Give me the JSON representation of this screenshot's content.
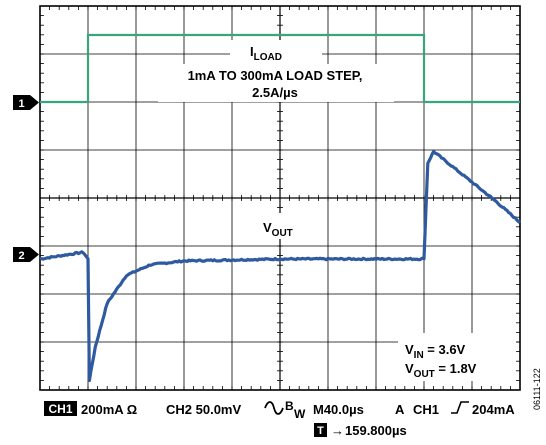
{
  "chart_data": {
    "type": "line",
    "title": "",
    "xlabel": "",
    "ylabel": "",
    "x_divisions": 10,
    "y_divisions": 8,
    "series": [
      {
        "name": "ILOAD",
        "channel": "CH1",
        "color": "#3aa57a",
        "unit": "mA",
        "x": [
          0,
          1.0,
          1.0,
          8.0,
          8.0,
          10
        ],
        "values": [
          1,
          1,
          300,
          300,
          1,
          1
        ]
      },
      {
        "name": "VOUT",
        "channel": "CH2",
        "color": "#2f5aa0",
        "unit": "mV (AC, offset)",
        "x": [
          0,
          0.5,
          0.9,
          1.0,
          1.03,
          1.15,
          1.4,
          1.8,
          2.3,
          3.0,
          4.0,
          5.0,
          6.0,
          7.0,
          7.95,
          8.0,
          8.08,
          8.2,
          8.6,
          9.0,
          9.5,
          10.0
        ],
        "values": [
          0,
          4,
          7,
          0,
          -126,
          -92,
          -46,
          -17,
          -6,
          -2,
          -1,
          0,
          0,
          0,
          0,
          1,
          100,
          112,
          96,
          80,
          60,
          38
        ]
      }
    ],
    "labels": {
      "iload_main": "I",
      "iload_sub": "LOAD",
      "load_step_line1": "1mA TO 300mA LOAD STEP,",
      "load_step_line2": "2.5A/µs",
      "vout_main": "V",
      "vout_sub": "OUT",
      "vin_main": "V",
      "vin_sub": "IN",
      "vin_value": " = 3.6V",
      "vout2_main": "V",
      "vout2_sub": "OUT",
      "vout2_value": " = 1.8V"
    },
    "markers": {
      "ch1": "1",
      "ch2": "2"
    },
    "footer": {
      "ch1_badge": "CH1",
      "ch1_scale": "200mA Ω",
      "ch2_scale": "CH2 50.0mV",
      "bw_b": "B",
      "bw_w": "W",
      "timebase": "M40.0µs",
      "trigger_a": "A",
      "trigger_ch": "CH1",
      "trigger_level": "204mA",
      "t_badge": "T",
      "t_arrow": "→",
      "t_delay": "159.800µs"
    },
    "figure_id": "06111-122"
  }
}
